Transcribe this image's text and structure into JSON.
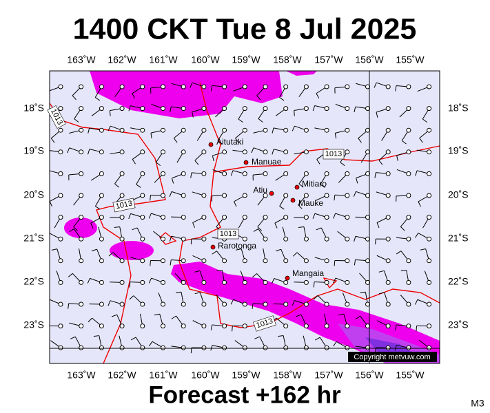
{
  "header": {
    "title": "1400 CKT Tue 8 Jul 2025"
  },
  "axes": {
    "longitudes": [
      "163˚W",
      "162˚W",
      "161˚W",
      "160˚W",
      "159˚W",
      "158˚W",
      "157˚W",
      "156˚W",
      "155˚W"
    ],
    "latitudes": [
      "18˚S",
      "19˚S",
      "20˚S",
      "21˚S",
      "22˚S",
      "23˚S"
    ]
  },
  "places": [
    "Aitutaki",
    "Manuae",
    "Atiu",
    "Mitiaro",
    "Mauke",
    "Rarotonga",
    "Mangaia"
  ],
  "isobar_labels": [
    "1013",
    "1013",
    "1013",
    "1013",
    "1013"
  ],
  "copyright": "Copyright metvuw.com",
  "footer": {
    "forecast": "Forecast +162 hr",
    "code": "M3"
  }
}
